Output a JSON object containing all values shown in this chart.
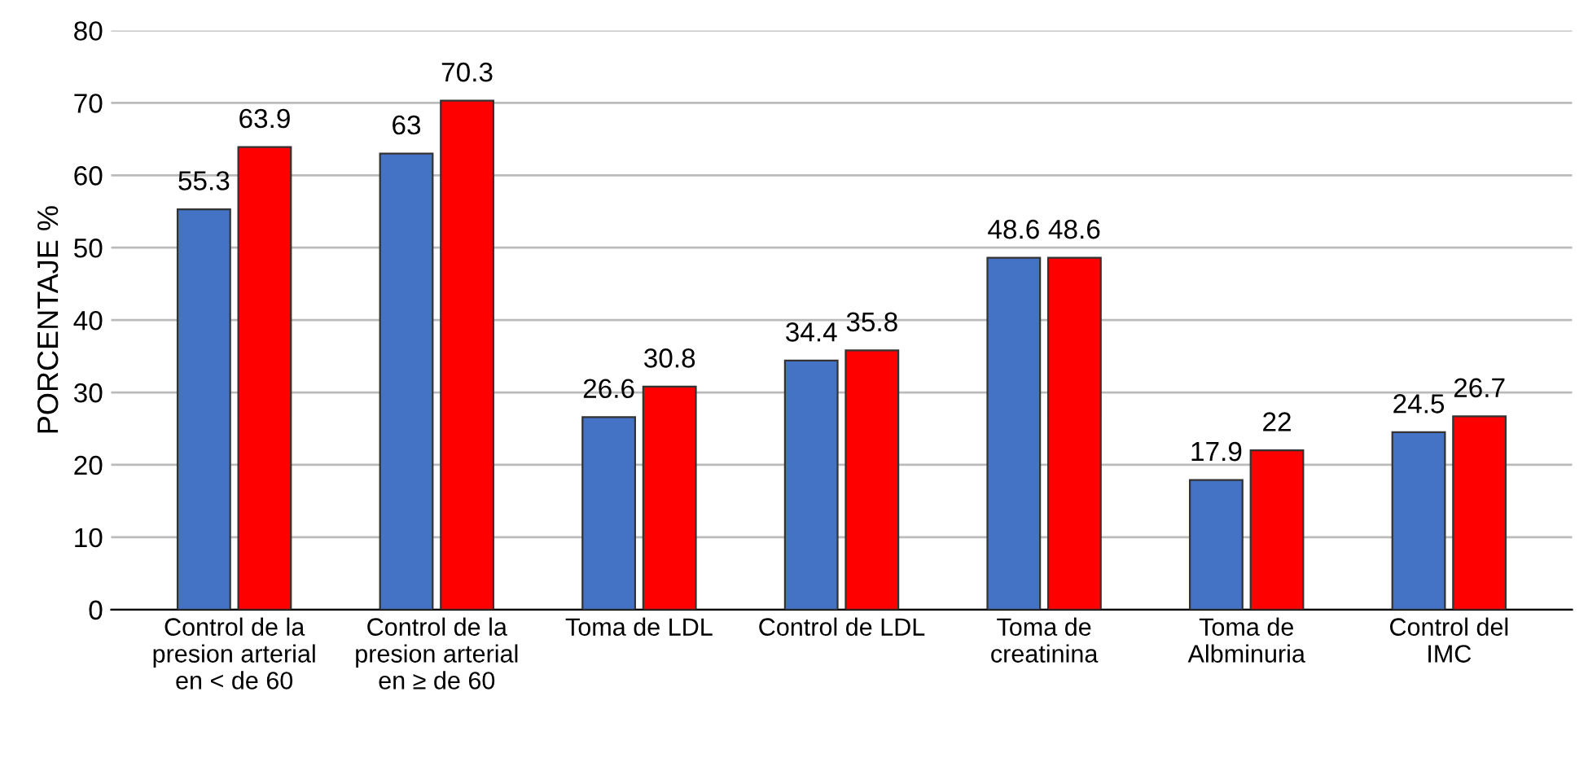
{
  "chart_data": {
    "type": "bar",
    "ylabel": "PORCENTAJE %",
    "categories": [
      "Control de la\npresion arterial\nen < de 60",
      "Control de la\npresion arterial\nen ≥ de 60",
      "Toma de LDL",
      "Control de LDL",
      "Toma de\ncreatinina",
      "Toma de\nAlbminuria",
      "Control del\nIMC"
    ],
    "series": [
      {
        "color": "#4472c4",
        "values": [
          55.3,
          63,
          26.6,
          34.4,
          48.6,
          17.9,
          24.5
        ]
      },
      {
        "color": "#ff0000",
        "values": [
          63.9,
          70.3,
          30.8,
          35.8,
          48.6,
          22,
          26.7
        ]
      }
    ],
    "ylim": [
      0,
      80
    ],
    "yticks": [
      0,
      10,
      20,
      30,
      40,
      50,
      60,
      70,
      80
    ],
    "grid": "y",
    "data_labels": true
  }
}
